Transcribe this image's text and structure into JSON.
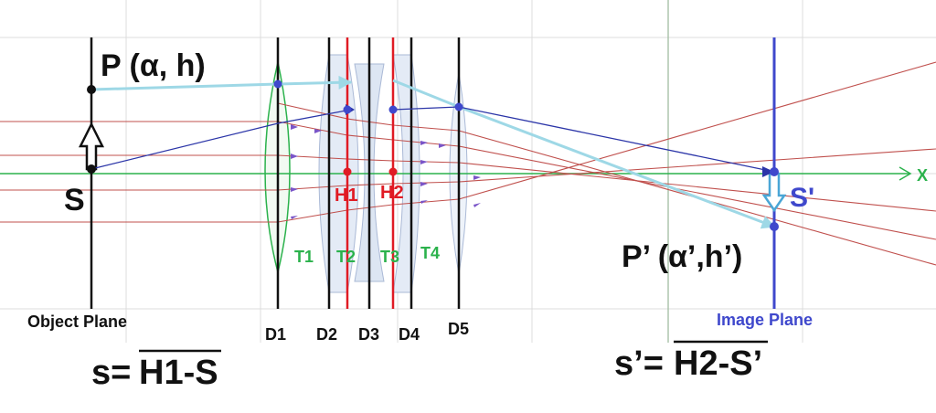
{
  "labels": {
    "P": "P (α, h)",
    "S": "S",
    "x_axis": "X",
    "H1": "H1",
    "H2": "H2",
    "T1": "T1",
    "T2": "T2",
    "T3": "T3",
    "T4": "T4",
    "D1": "D1",
    "D2": "D2",
    "D3": "D3",
    "D4": "D4",
    "D5": "D5",
    "S_prime": "S'",
    "P_prime": "P’ (α’,h’)",
    "object_plane": "Object Plane",
    "image_plane": "Image Plane",
    "formula_s_prefix": "s=",
    "formula_s_overline": "H1-S",
    "formula_sp_prefix": "s’=",
    "formula_sp_overline": "H2-S’"
  },
  "colors": {
    "axis": "#2bb24c",
    "rays_red": "#c0504d",
    "principal_red": "#e01b24",
    "chief_ray_light": "#9ed8e6",
    "chief_ray_dark": "#2b35a8",
    "image_plane": "#3f48cc",
    "lens_fill": "#dde6f3",
    "grid": "#d9d9d9"
  }
}
